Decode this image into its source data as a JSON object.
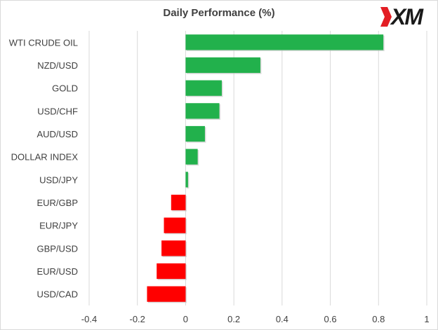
{
  "chart_data": {
    "type": "bar",
    "orientation": "horizontal",
    "title": "Daily Performance (%)",
    "categories": [
      "WTI CRUDE OIL",
      "NZD/USD",
      "GOLD",
      "USD/CHF",
      "AUD/USD",
      "DOLLAR INDEX",
      "USD/JPY",
      "EUR/GBP",
      "EUR/JPY",
      "GBP/USD",
      "EUR/USD",
      "USD/CAD"
    ],
    "values": [
      0.82,
      0.31,
      0.15,
      0.14,
      0.08,
      0.05,
      0.01,
      -0.06,
      -0.09,
      -0.1,
      -0.12,
      -0.16
    ],
    "xlim": [
      -0.4,
      1.0
    ],
    "xticks": [
      -0.4,
      -0.2,
      0,
      0.2,
      0.4,
      0.6,
      0.8,
      1
    ],
    "tick_labels": [
      "-0.4",
      "-0.2",
      "0",
      "0.2",
      "0.4",
      "0.6",
      "0.8",
      "1"
    ],
    "grid": true,
    "colors": {
      "positive": "#22b14c",
      "negative": "#ff0000",
      "grid": "#d9d9d9",
      "text": "#404040"
    }
  },
  "logo": {
    "text": "XM",
    "accent": "#e31e24"
  }
}
